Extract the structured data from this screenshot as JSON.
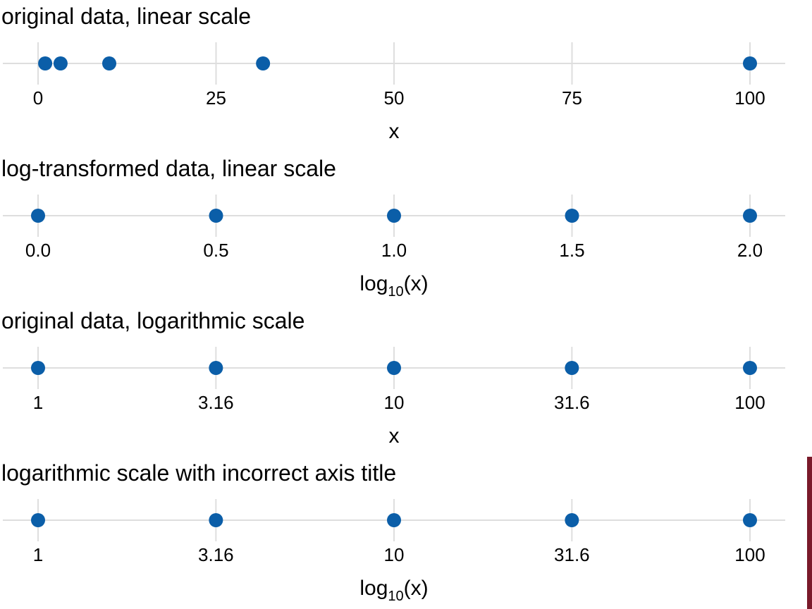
{
  "chart_data": [
    {
      "type": "scatter",
      "title": "original data, linear scale",
      "xlabel": "x",
      "xlabel_sub": "",
      "xlabel_tail": "",
      "scale": "linear",
      "xlim": [
        0,
        100
      ],
      "ticks": [
        0,
        25,
        50,
        75,
        100
      ],
      "tick_labels": [
        "0",
        "25",
        "50",
        "75",
        "100"
      ],
      "x": [
        1,
        3.16,
        10,
        31.6,
        100
      ],
      "grid": true
    },
    {
      "type": "scatter",
      "title": "log-transformed data, linear scale",
      "xlabel": "log",
      "xlabel_sub": "10",
      "xlabel_tail": "(x)",
      "scale": "linear",
      "xlim": [
        0,
        2
      ],
      "ticks": [
        0,
        0.5,
        1,
        1.5,
        2
      ],
      "tick_labels": [
        "0.0",
        "0.5",
        "1.0",
        "1.5",
        "2.0"
      ],
      "x": [
        0,
        0.5,
        1,
        1.5,
        2
      ],
      "grid": true
    },
    {
      "type": "scatter",
      "title": "original data, logarithmic scale",
      "xlabel": "x",
      "xlabel_sub": "",
      "xlabel_tail": "",
      "scale": "log",
      "xlim": [
        1,
        100
      ],
      "ticks": [
        1,
        3.16,
        10,
        31.6,
        100
      ],
      "tick_labels": [
        "1",
        "3.16",
        "10",
        "31.6",
        "100"
      ],
      "x": [
        1,
        3.16,
        10,
        31.6,
        100
      ],
      "grid": true
    },
    {
      "type": "scatter",
      "title": "logarithmic scale with incorrect axis title",
      "xlabel": "log",
      "xlabel_sub": "10",
      "xlabel_tail": "(x)",
      "scale": "log",
      "xlim": [
        1,
        100
      ],
      "ticks": [
        1,
        3.16,
        10,
        31.6,
        100
      ],
      "tick_labels": [
        "1",
        "3.16",
        "10",
        "31.6",
        "100"
      ],
      "x": [
        1,
        3.16,
        10,
        31.6,
        100
      ],
      "grid": true,
      "flag": "bad"
    }
  ],
  "colors": {
    "point": "#0b5ea8",
    "grid": "#dedede",
    "bad_marker": "#7a1a2a"
  }
}
